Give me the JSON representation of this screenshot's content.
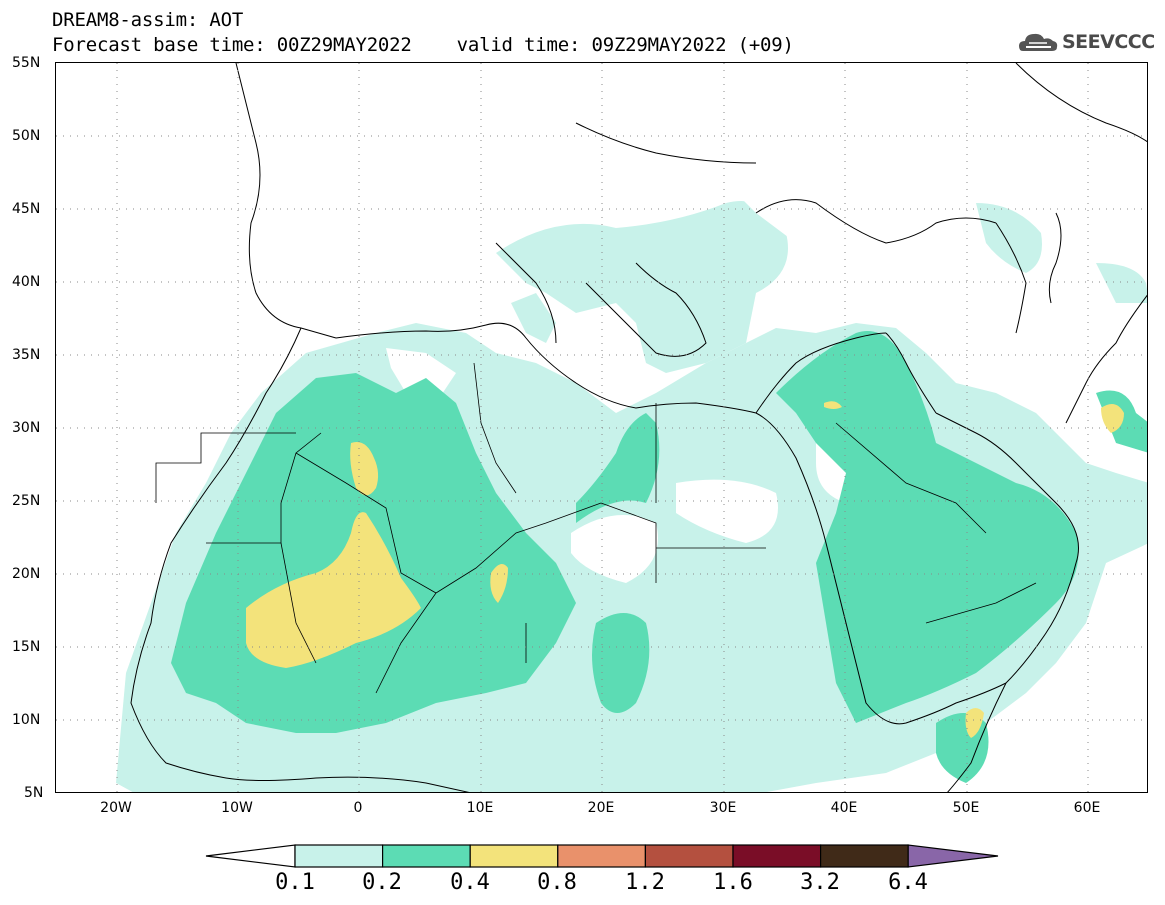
{
  "header": {
    "line1": "DREAM8-assim: AOT",
    "line2": "Forecast base time: 00Z29MAY2022    valid time: 09Z29MAY2022 (+09)"
  },
  "logo": {
    "text": "SEEVCCC",
    "icon": "cloud-icon"
  },
  "map": {
    "lat_labels": [
      "55N",
      "50N",
      "45N",
      "40N",
      "35N",
      "30N",
      "25N",
      "20N",
      "15N",
      "10N",
      "5N"
    ],
    "lon_labels": [
      "20W",
      "10W",
      "0",
      "10E",
      "20E",
      "30E",
      "40E",
      "50E",
      "60E"
    ],
    "lon_range": [
      -25,
      65
    ],
    "lat_range": [
      5,
      55
    ],
    "grid": "dotted"
  },
  "colorbar": {
    "labels": [
      "0.1",
      "0.2",
      "0.4",
      "0.8",
      "1.2",
      "1.6",
      "3.2",
      "6.4"
    ],
    "colors": [
      "#ffffff",
      "#c8f2ea",
      "#5cdcb4",
      "#f3e37b",
      "#e9916b",
      "#b4503f",
      "#7a0d27",
      "#402a18",
      "#8966a8"
    ]
  }
}
